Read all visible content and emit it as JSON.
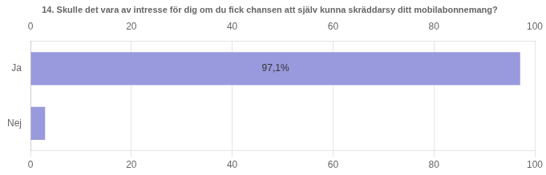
{
  "chart_data": {
    "type": "bar",
    "orientation": "horizontal",
    "title": "14. Skulle det vara av intresse för dig om du fick chansen att själv kunna skräddarsy ditt mobilabonnemang?",
    "categories": [
      "Ja",
      "Nej"
    ],
    "values": [
      97.1,
      2.9
    ],
    "data_labels": true,
    "value_labels": [
      "97,1%",
      null
    ],
    "color": "#9999dd",
    "xlim": [
      0,
      100
    ],
    "xticks": [
      0,
      20,
      40,
      60,
      80,
      100
    ],
    "grid": true
  }
}
